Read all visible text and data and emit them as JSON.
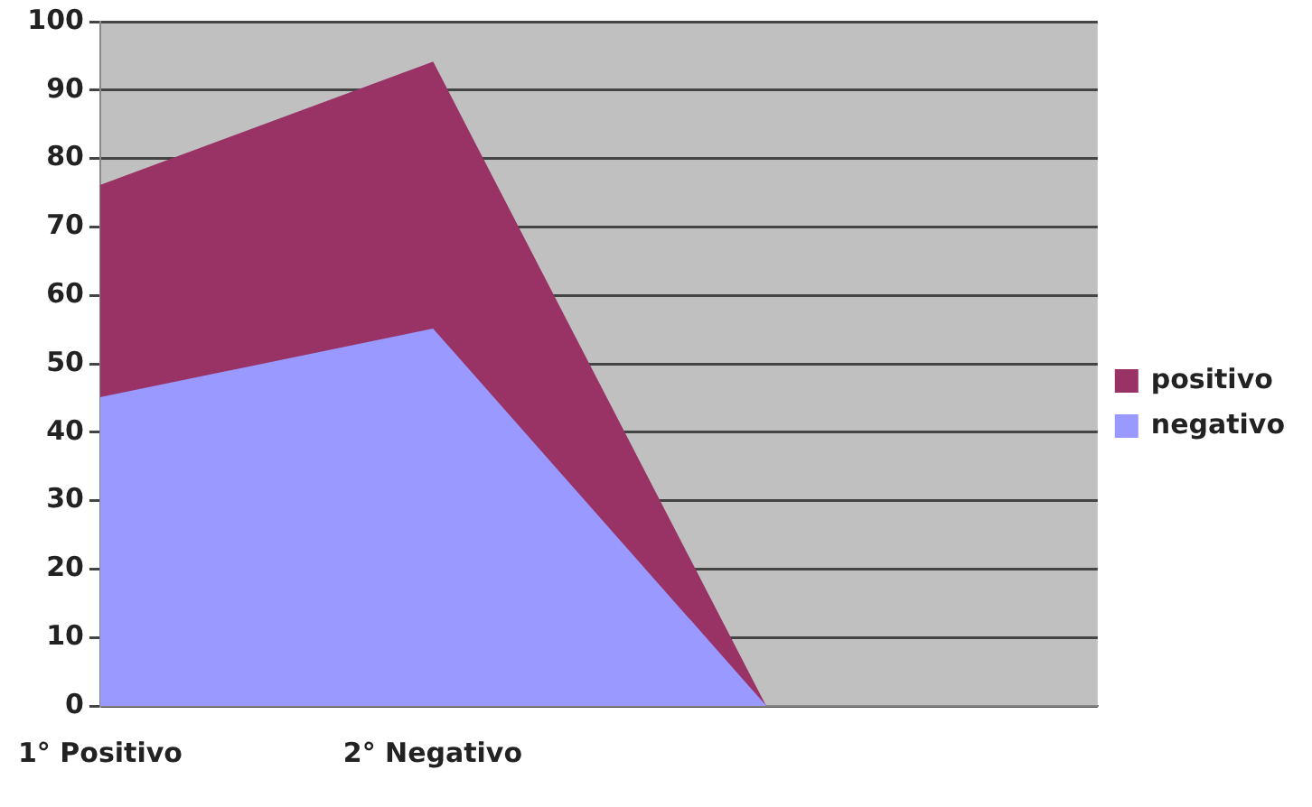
{
  "chart_data": {
    "type": "area",
    "stacked": true,
    "categories": [
      "1° Positivo",
      "2° Negativo",
      null,
      null
    ],
    "series": [
      {
        "name": "negativo",
        "color": "#9999ff",
        "values": [
          45,
          55,
          0,
          null
        ]
      },
      {
        "name": "positivo",
        "color": "#993366",
        "values": [
          31,
          39,
          0,
          null
        ]
      }
    ],
    "ylim": [
      0,
      100
    ],
    "yticks": [
      0,
      10,
      20,
      30,
      40,
      50,
      60,
      70,
      80,
      90,
      100
    ],
    "grid": "y",
    "legend": "right"
  }
}
